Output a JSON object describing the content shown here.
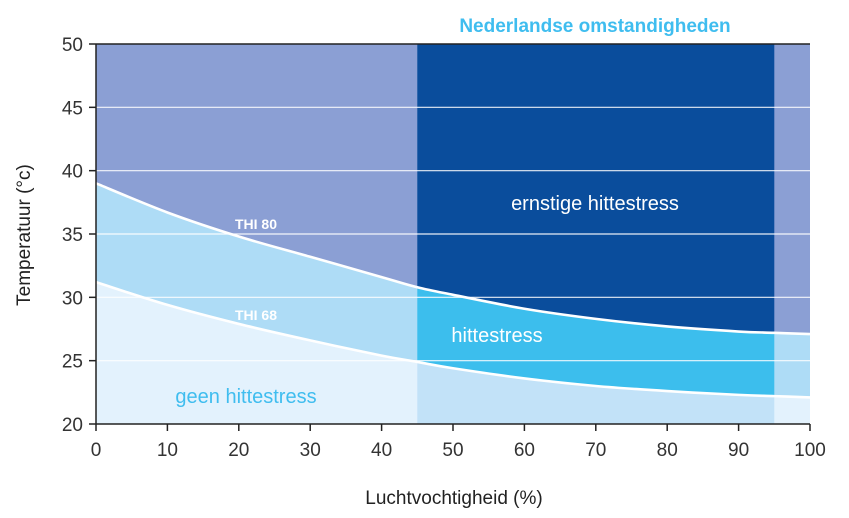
{
  "chart_data": {
    "type": "area",
    "title": "Nederlandse omstandigheden",
    "xlabel": "Luchtvochtigheid (%)",
    "ylabel": "Temperatuur (°c)",
    "xlim": [
      0,
      100
    ],
    "ylim": [
      20,
      50
    ],
    "x_ticks": [
      "0",
      "10",
      "20",
      "30",
      "40",
      "50",
      "60",
      "70",
      "80",
      "90",
      "100"
    ],
    "y_ticks": [
      "20",
      "25",
      "30",
      "35",
      "40",
      "45",
      "50"
    ],
    "grid": true,
    "highlight_range_x": [
      45,
      95
    ],
    "x": [
      0,
      10,
      20,
      30,
      40,
      45,
      50,
      60,
      70,
      80,
      90,
      95,
      100
    ],
    "series": [
      {
        "name": "THI 80",
        "values": [
          39.0,
          36.7,
          34.8,
          33.2,
          31.6,
          30.8,
          30.2,
          29.1,
          28.3,
          27.7,
          27.3,
          27.2,
          27.1
        ]
      },
      {
        "name": "THI 68",
        "values": [
          31.2,
          29.4,
          27.9,
          26.6,
          25.4,
          24.9,
          24.4,
          23.6,
          23.0,
          22.6,
          22.3,
          22.2,
          22.1
        ]
      }
    ],
    "zones": [
      {
        "label": "ernstige hittestress",
        "color": "#ffffff"
      },
      {
        "label": "hittestress",
        "color": "#ffffff"
      },
      {
        "label": "geen hittestress",
        "color": "#3fbdef"
      }
    ],
    "colors": {
      "severe_outside": "#8b9fd4",
      "severe_inside": "#0a4d9c",
      "stress_outside": "#aedcf6",
      "stress_inside": "#3cbeed",
      "none_outside": "#e3f2fd",
      "none_inside": "#c2e2f8"
    }
  }
}
